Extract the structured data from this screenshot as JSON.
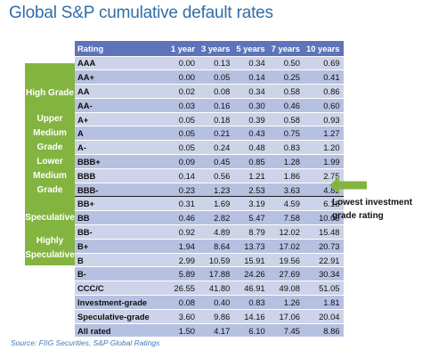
{
  "title": "Global S&P cumulative default rates",
  "table": {
    "headers": [
      "Rating",
      "1 year",
      "3 years",
      "5 years",
      "7 years",
      "10 years"
    ],
    "rows": [
      {
        "rating": "AAA",
        "values": [
          "0.00",
          "0.13",
          "0.34",
          "0.50",
          "0.69"
        ]
      },
      {
        "rating": "AA+",
        "values": [
          "0.00",
          "0.05",
          "0.14",
          "0.25",
          "0.41"
        ]
      },
      {
        "rating": "AA",
        "values": [
          "0.02",
          "0.08",
          "0.34",
          "0.58",
          "0.86"
        ]
      },
      {
        "rating": "AA-",
        "values": [
          "0.03",
          "0.16",
          "0.30",
          "0.46",
          "0.60"
        ]
      },
      {
        "rating": "A+",
        "values": [
          "0.05",
          "0.18",
          "0.39",
          "0.58",
          "0.93"
        ]
      },
      {
        "rating": "A",
        "values": [
          "0.05",
          "0.21",
          "0.43",
          "0.75",
          "1.27"
        ]
      },
      {
        "rating": "A-",
        "values": [
          "0.05",
          "0.24",
          "0.48",
          "0.83",
          "1.20"
        ]
      },
      {
        "rating": "BBB+",
        "values": [
          "0.09",
          "0.45",
          "0.85",
          "1.28",
          "1.99"
        ]
      },
      {
        "rating": "BBB",
        "values": [
          "0.14",
          "0.56",
          "1.21",
          "1.86",
          "2.75"
        ]
      },
      {
        "rating": "BBB-",
        "values": [
          "0.23",
          "1.23",
          "2.53",
          "3.63",
          "4.83"
        ]
      },
      {
        "rating": "BB+",
        "values": [
          "0.31",
          "1.69",
          "3.19",
          "4.59",
          "6.18"
        ]
      },
      {
        "rating": "BB",
        "values": [
          "0.46",
          "2.82",
          "5.47",
          "7.58",
          "10.06"
        ]
      },
      {
        "rating": "BB-",
        "values": [
          "0.92",
          "4.89",
          "8.79",
          "12.02",
          "15.48"
        ]
      },
      {
        "rating": "B+",
        "values": [
          "1.94",
          "8.64",
          "13.73",
          "17.02",
          "20.73"
        ]
      },
      {
        "rating": "B",
        "values": [
          "2.99",
          "10.59",
          "15.91",
          "19.56",
          "22.91"
        ]
      },
      {
        "rating": "B-",
        "values": [
          "5.89",
          "17.88",
          "24.26",
          "27.69",
          "30.34"
        ]
      },
      {
        "rating": "CCC/C",
        "values": [
          "26.55",
          "41.80",
          "46.91",
          "49.08",
          "51.05"
        ]
      },
      {
        "rating": "Investment-grade",
        "values": [
          "0.08",
          "0.40",
          "0.83",
          "1.26",
          "1.81"
        ]
      },
      {
        "rating": "Speculative-grade",
        "values": [
          "3.60",
          "9.86",
          "14.16",
          "17.06",
          "20.04"
        ]
      },
      {
        "rating": "All rated",
        "values": [
          "1.50",
          "4.17",
          "6.10",
          "7.45",
          "8.86"
        ]
      }
    ]
  },
  "grade_labels": [
    "High Grade",
    "Upper",
    "Medium",
    "Grade",
    "Lower",
    "Medium",
    "Grade",
    "Speculative",
    "Highly",
    "Speculative"
  ],
  "callout": "Lowest investment grade rating",
  "source": "Source: FIIG Securities, S&P Global Ratings",
  "colors": {
    "header": "#5e74ba",
    "row_light": "#cdd3e8",
    "row_dark": "#b6c1e1",
    "grade_green": "#84b440",
    "title_blue": "#2f6da8"
  }
}
